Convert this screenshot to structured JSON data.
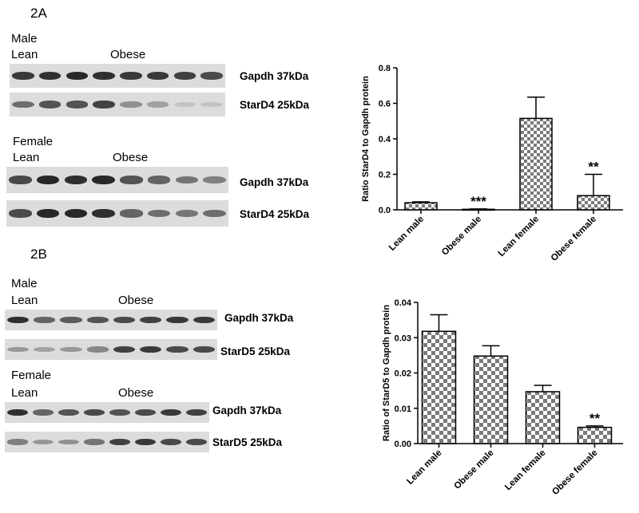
{
  "panels": {
    "a": {
      "label": "2A",
      "male": {
        "sex": "Male",
        "lean": "Lean",
        "obese": "Obese",
        "blots": [
          {
            "label": "Gapdh 37kDa",
            "intensities": [
              0.85,
              0.9,
              0.95,
              0.9,
              0.85,
              0.85,
              0.8,
              0.75
            ]
          },
          {
            "label": "StarD4 25kDa",
            "intensities": [
              0.55,
              0.7,
              0.7,
              0.8,
              0.35,
              0.25,
              0.05,
              0.05
            ]
          }
        ]
      },
      "female": {
        "sex": "Female",
        "lean": "Lean",
        "obese": "Obese",
        "blots": [
          {
            "label": "Gapdh 37kDa",
            "intensities": [
              0.75,
              0.95,
              0.9,
              0.95,
              0.7,
              0.6,
              0.5,
              0.45
            ]
          },
          {
            "label": "StarD4 25kDa",
            "intensities": [
              0.75,
              0.95,
              0.95,
              0.9,
              0.6,
              0.55,
              0.5,
              0.55
            ]
          }
        ]
      }
    },
    "b": {
      "label": "2B",
      "male": {
        "sex": "Male",
        "lean": "Lean",
        "obese": "Obese",
        "blots": [
          {
            "label": "Gapdh 37kDa",
            "intensities": [
              0.9,
              0.6,
              0.65,
              0.7,
              0.75,
              0.8,
              0.85,
              0.85
            ]
          },
          {
            "label": "StarD5 25kDa",
            "intensities": [
              0.3,
              0.25,
              0.3,
              0.4,
              0.8,
              0.85,
              0.75,
              0.75
            ]
          }
        ]
      },
      "female": {
        "sex": "Female",
        "lean": "Lean",
        "obese": "Obese",
        "blots": [
          {
            "label": "Gapdh 37kDa",
            "intensities": [
              0.9,
              0.6,
              0.7,
              0.75,
              0.7,
              0.75,
              0.85,
              0.8
            ]
          },
          {
            "label": "StarD5 25kDa",
            "intensities": [
              0.45,
              0.3,
              0.35,
              0.5,
              0.8,
              0.85,
              0.75,
              0.75
            ]
          }
        ]
      }
    }
  },
  "chart_data": [
    {
      "type": "bar",
      "title": "",
      "xlabel": "",
      "ylabel": "Ratio StarD4 to Gapdh protein",
      "categories": [
        "Lean male",
        "Obese male",
        "Lean female",
        "Obese female"
      ],
      "values": [
        0.04,
        0.003,
        0.515,
        0.08
      ],
      "error_upper": [
        0.045,
        0.005,
        0.635,
        0.2
      ],
      "annotations": [
        "",
        "***",
        "",
        "**"
      ],
      "ylim": [
        0,
        0.8
      ],
      "yticks": [
        0.0,
        0.2,
        0.4,
        0.6,
        0.8
      ],
      "ytick_labels": [
        "0.0",
        "0.2",
        "0.4",
        "0.6",
        "0.8"
      ],
      "bar_pattern": "fine-checkerboard",
      "grid": false,
      "legend": "none"
    },
    {
      "type": "bar",
      "title": "",
      "xlabel": "",
      "ylabel": "Ratio of StarD5 to Gapdh protein",
      "categories": [
        "Lean male",
        "Obese male",
        "Lean female",
        "Obese female"
      ],
      "values": [
        0.0318,
        0.0248,
        0.0147,
        0.0046
      ],
      "error_upper": [
        0.0365,
        0.0277,
        0.0165,
        0.005
      ],
      "annotations": [
        "",
        "",
        "",
        "**"
      ],
      "ylim": [
        0,
        0.04
      ],
      "yticks": [
        0.0,
        0.01,
        0.02,
        0.03,
        0.04
      ],
      "ytick_labels": [
        "0.00",
        "0.01",
        "0.02",
        "0.03",
        "0.04"
      ],
      "bar_pattern": "coarse-checkerboard",
      "grid": false,
      "legend": "none"
    }
  ]
}
